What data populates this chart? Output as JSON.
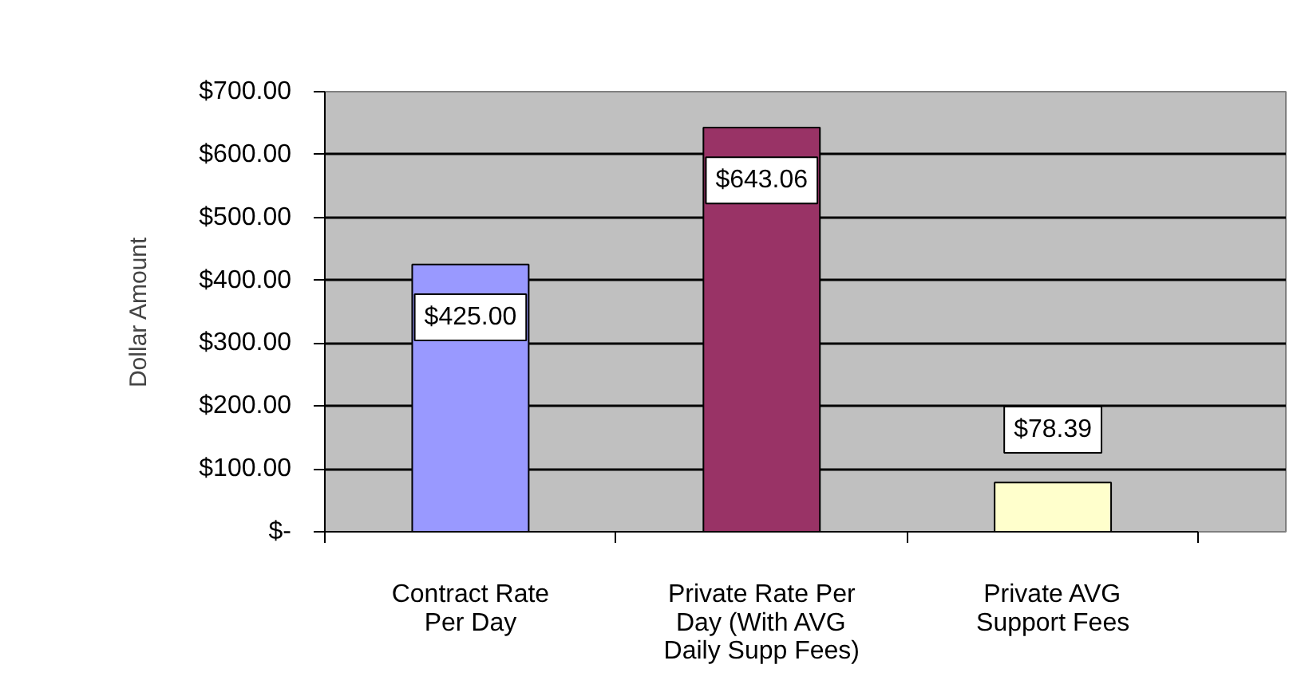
{
  "chart_data": {
    "type": "bar",
    "ylabel": "Dollar Amount",
    "categories": [
      "Contract Rate Per Day",
      "Private Rate Per Day (With AVG Daily Supp Fees)",
      "Private AVG Support Fees"
    ],
    "values": [
      425.0,
      643.06,
      78.39
    ],
    "colors": [
      "#9999ff",
      "#993366",
      "#ffffcc"
    ],
    "value_labels": [
      "$425.00",
      "$643.06",
      "$78.39"
    ],
    "ylim": [
      0,
      700
    ],
    "yticks": [
      {
        "value": 0,
        "label": "$-"
      },
      {
        "value": 100,
        "label": "$100.00"
      },
      {
        "value": 200,
        "label": "$200.00"
      },
      {
        "value": 300,
        "label": "$300.00"
      },
      {
        "value": 400,
        "label": "$400.00"
      },
      {
        "value": 500,
        "label": "$500.00"
      },
      {
        "value": 600,
        "label": "$600.00"
      },
      {
        "value": 700,
        "label": "$700.00"
      }
    ],
    "grid": "y"
  }
}
